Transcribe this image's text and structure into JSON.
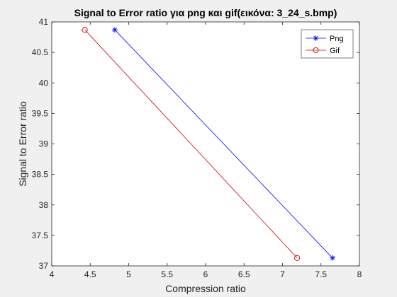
{
  "chart_data": {
    "type": "line",
    "title": "Signal to Error ratio για png και gif(εικόνα: 3_24_s.bmp)",
    "xlabel": "Compression ratio",
    "ylabel": "Signal to Error ratio",
    "xlim": [
      4,
      8
    ],
    "ylim": [
      37,
      41
    ],
    "xticks": [
      4,
      4.5,
      5,
      5.5,
      6,
      6.5,
      7,
      7.5,
      8
    ],
    "yticks": [
      37,
      37.5,
      38,
      38.5,
      39,
      39.5,
      40,
      40.5,
      41
    ],
    "xtick_labels": [
      "4",
      "4.5",
      "5",
      "5.5",
      "6",
      "6.5",
      "7",
      "7.5",
      "8"
    ],
    "ytick_labels": [
      "37",
      "37.5",
      "38",
      "38.5",
      "39",
      "39.5",
      "40",
      "40.5",
      "41"
    ],
    "grid": false,
    "legend_position": "top-right",
    "series": [
      {
        "name": "Png",
        "color": "#0000ff",
        "marker": "asterisk",
        "x": [
          4.82,
          7.65
        ],
        "y": [
          40.87,
          37.13
        ]
      },
      {
        "name": "Gif",
        "color": "#cc0000",
        "marker": "circle",
        "x": [
          4.43,
          7.19
        ],
        "y": [
          40.87,
          37.13
        ]
      }
    ]
  }
}
